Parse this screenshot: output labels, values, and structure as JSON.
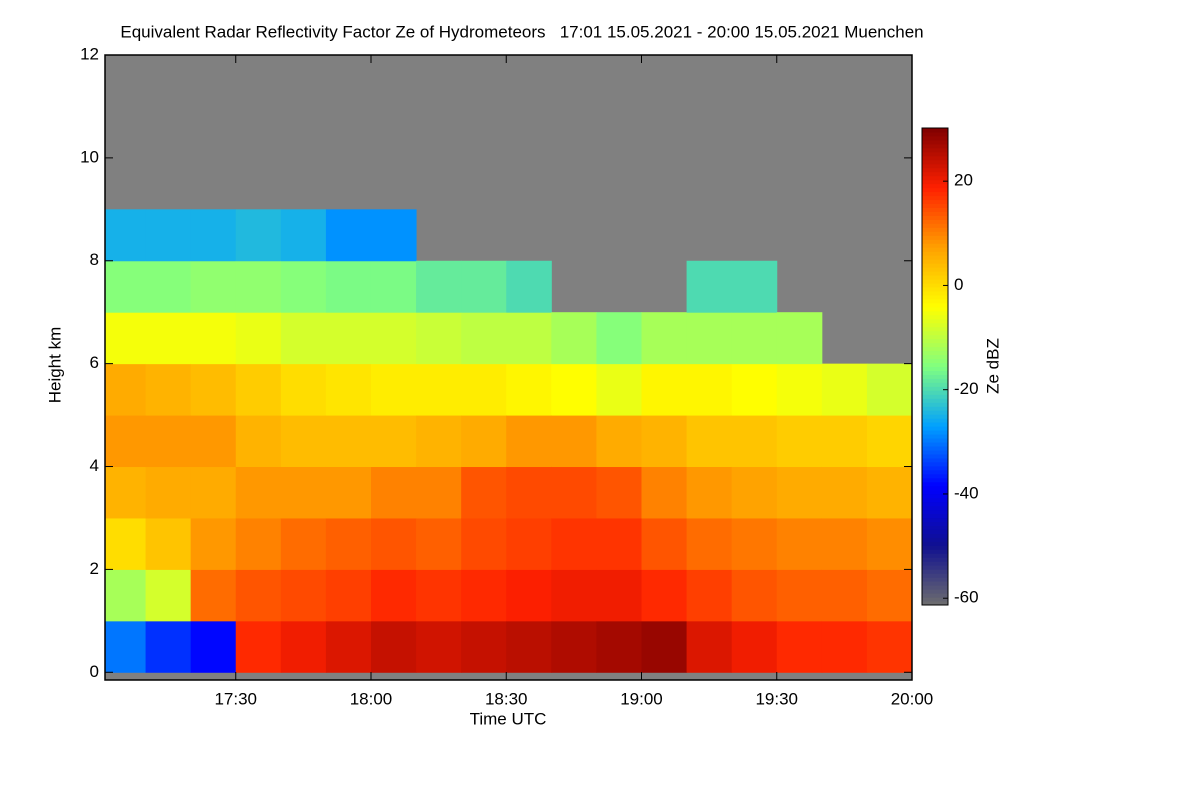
{
  "chart_data": {
    "type": "heatmap",
    "title": "Equivalent Radar Reflectivity Factor Ze of Hydrometeors   17:01 15.05.2021 - 20:00 15.05.2021 Muenchen",
    "xlabel": "Time UTC",
    "ylabel": "Height km",
    "colorbar_label": "Ze dBZ",
    "x": [
      1025,
      1035,
      1045,
      1055,
      1065,
      1075,
      1085,
      1095,
      1105,
      1115,
      1125,
      1135,
      1145,
      1155,
      1165,
      1175,
      1185,
      1195
    ],
    "y": [
      0.5,
      1.5,
      2.5,
      3.5,
      4.5,
      5.5,
      6.5,
      7.5,
      8.5,
      9.5,
      10.5,
      11.5
    ],
    "z": [
      [
        -30,
        -12,
        0,
        5,
        8,
        6,
        -5,
        -15,
        -25,
        null,
        null,
        null
      ],
      [
        -35,
        -8,
        3,
        6,
        8,
        5,
        -5,
        -15,
        -25,
        null,
        null,
        null
      ],
      [
        -38,
        12,
        8,
        6,
        8,
        4,
        -5,
        -14,
        -25,
        null,
        null,
        null
      ],
      [
        18,
        14,
        10,
        8,
        5,
        2,
        -6,
        -14,
        -24,
        null,
        null,
        null
      ],
      [
        20,
        15,
        12,
        8,
        4,
        0,
        -8,
        -15,
        -25,
        null,
        null,
        null
      ],
      [
        22,
        16,
        13,
        8,
        4,
        -1,
        -8,
        -16,
        -28,
        null,
        null,
        null
      ],
      [
        24,
        18,
        14,
        10,
        4,
        -2,
        -8,
        -16,
        -28,
        null,
        null,
        null
      ],
      [
        23,
        17,
        13,
        10,
        5,
        -2,
        -9,
        -18,
        null,
        null,
        null,
        null
      ],
      [
        24,
        18,
        15,
        14,
        6,
        -2,
        -10,
        -18,
        null,
        null,
        null,
        null
      ],
      [
        25,
        19,
        16,
        15,
        8,
        -3,
        -10,
        -20,
        null,
        null,
        null,
        null
      ],
      [
        26,
        20,
        17,
        15,
        8,
        -4,
        -12,
        null,
        null,
        null,
        null,
        null
      ],
      [
        27,
        20,
        17,
        14,
        6,
        -6,
        -15,
        null,
        null,
        null,
        null,
        null
      ],
      [
        28,
        18,
        14,
        10,
        5,
        -3,
        -12,
        null,
        null,
        null,
        null,
        null
      ],
      [
        22,
        16,
        12,
        8,
        3,
        -3,
        -12,
        -20,
        null,
        null,
        null,
        null
      ],
      [
        20,
        14,
        11,
        7,
        3,
        -4,
        -12,
        -20,
        null,
        null,
        null,
        null
      ],
      [
        18,
        13,
        10,
        6,
        2,
        -5,
        -12,
        null,
        null,
        null,
        null,
        null
      ],
      [
        18,
        13,
        10,
        6,
        2,
        -6,
        null,
        null,
        null,
        null,
        null,
        null
      ],
      [
        17,
        12,
        9,
        5,
        1,
        -8,
        null,
        null,
        null,
        null,
        null,
        null
      ]
    ],
    "xlim": [
      1021,
      1200
    ],
    "xticks": [
      {
        "value": 1050,
        "label": "17:30"
      },
      {
        "value": 1080,
        "label": "18:00"
      },
      {
        "value": 1110,
        "label": "18:30"
      },
      {
        "value": 1140,
        "label": "19:00"
      },
      {
        "value": 1170,
        "label": "19:30"
      },
      {
        "value": 1200,
        "label": "20:00"
      }
    ],
    "ylim": [
      -0.15,
      12
    ],
    "yticks": [
      0,
      2,
      4,
      6,
      8,
      10,
      12
    ],
    "zlim": [
      -61.3,
      30.2
    ],
    "zticks": [
      -60,
      -40,
      -20,
      0,
      20
    ],
    "colormap": [
      "#6e6e6e",
      "#101090",
      "#0000ff",
      "#00a0ff",
      "#80ff80",
      "#ffff00",
      "#ffa000",
      "#ff2000",
      "#800000"
    ],
    "no_data_color": "#808080"
  }
}
